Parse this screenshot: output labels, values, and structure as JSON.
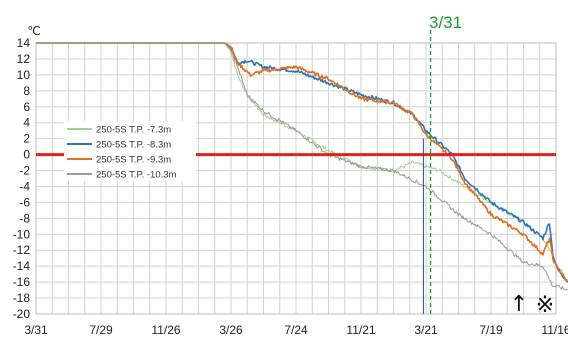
{
  "chart_data": {
    "type": "line",
    "unit_label": "℃",
    "ylim": [
      -20,
      14
    ],
    "y_ticks": [
      14,
      12,
      10,
      8,
      6,
      4,
      2,
      0,
      -2,
      -4,
      -6,
      -8,
      -10,
      -12,
      -14,
      -16,
      -18,
      -20
    ],
    "x_ticks": [
      "3/31",
      "7/29",
      "11/26",
      "3/26",
      "7/24",
      "11/21",
      "3/21",
      "7/19",
      "11/16"
    ],
    "grid": true,
    "legend_position": "left",
    "reference_line": {
      "y": 0,
      "color": "#e3201b"
    },
    "marker_line": {
      "label": "3/31",
      "color": "#1a9a3b"
    },
    "vertical_line": {
      "color": "#2e4a8c"
    },
    "annotation_arrow": "↑",
    "annotation_mark": "※",
    "series": [
      {
        "name": "250-5S T.P. -7.3m",
        "color": "#9fd38a",
        "x": [
          0,
          1,
          2,
          2.9,
          3.0,
          3.1,
          3.25,
          3.5,
          4.0,
          4.5,
          5.0,
          5.5,
          5.8,
          6.2,
          6.6,
          7.0,
          7.5,
          7.8,
          8.0,
          8.18
        ],
        "values": [
          14,
          14,
          14,
          14,
          13,
          10,
          7.5,
          5,
          3,
          0.5,
          -1.5,
          -2.0,
          -1.0,
          -2.0,
          -4.0,
          -6.0,
          -8.5,
          -10.5,
          -13.5,
          -16.0
        ]
      },
      {
        "name": "250-5S T.P. -8.3m",
        "color": "#2e75b6",
        "x": [
          0,
          1,
          2,
          2.9,
          3.0,
          3.1,
          3.25,
          3.5,
          4.0,
          4.5,
          5.0,
          5.5,
          5.8,
          6.0,
          6.2,
          6.4,
          6.6,
          7.0,
          7.5,
          7.8,
          7.9,
          7.95,
          8.0,
          8.18
        ],
        "values": [
          14,
          14,
          14,
          14,
          13.5,
          11.5,
          11.8,
          11,
          10.5,
          9.0,
          7.5,
          6.5,
          5.0,
          3.0,
          1.5,
          0.0,
          -3.0,
          -6.0,
          -8.5,
          -10.5,
          -8.5,
          -12.5,
          -14.0,
          -16.0
        ]
      },
      {
        "name": "250-5S T.P. -9.3m",
        "color": "#e07020",
        "x": [
          0,
          1,
          2,
          2.9,
          3.0,
          3.1,
          3.3,
          3.5,
          4.0,
          4.5,
          5.0,
          5.5,
          5.8,
          6.0,
          6.2,
          6.4,
          6.6,
          7.0,
          7.5,
          7.8,
          7.9,
          7.95,
          8.0,
          8.18
        ],
        "values": [
          14,
          14,
          14,
          14,
          13.5,
          11.5,
          10.0,
          10.5,
          11.0,
          9.5,
          7.0,
          6.5,
          5.0,
          2.5,
          1.0,
          -0.5,
          -3.5,
          -7.5,
          -10.0,
          -12.5,
          -10.5,
          -13.0,
          -14.0,
          -16.0
        ]
      },
      {
        "name": "250-5S T.P. -10.3m",
        "color": "#9a9a9a",
        "x": [
          0,
          1,
          2,
          2.9,
          3.0,
          3.1,
          3.25,
          3.5,
          4.0,
          4.5,
          5.0,
          5.5,
          6.0,
          6.5,
          7.0,
          7.5,
          7.8,
          7.95,
          8.0,
          8.18
        ],
        "values": [
          14,
          14,
          14,
          14,
          13,
          11,
          7.5,
          5.5,
          3.0,
          0.0,
          -1.5,
          -2.0,
          -4.0,
          -7.5,
          -10.0,
          -13.5,
          -14.0,
          -16.5,
          -16.5,
          -17.0
        ]
      }
    ]
  }
}
